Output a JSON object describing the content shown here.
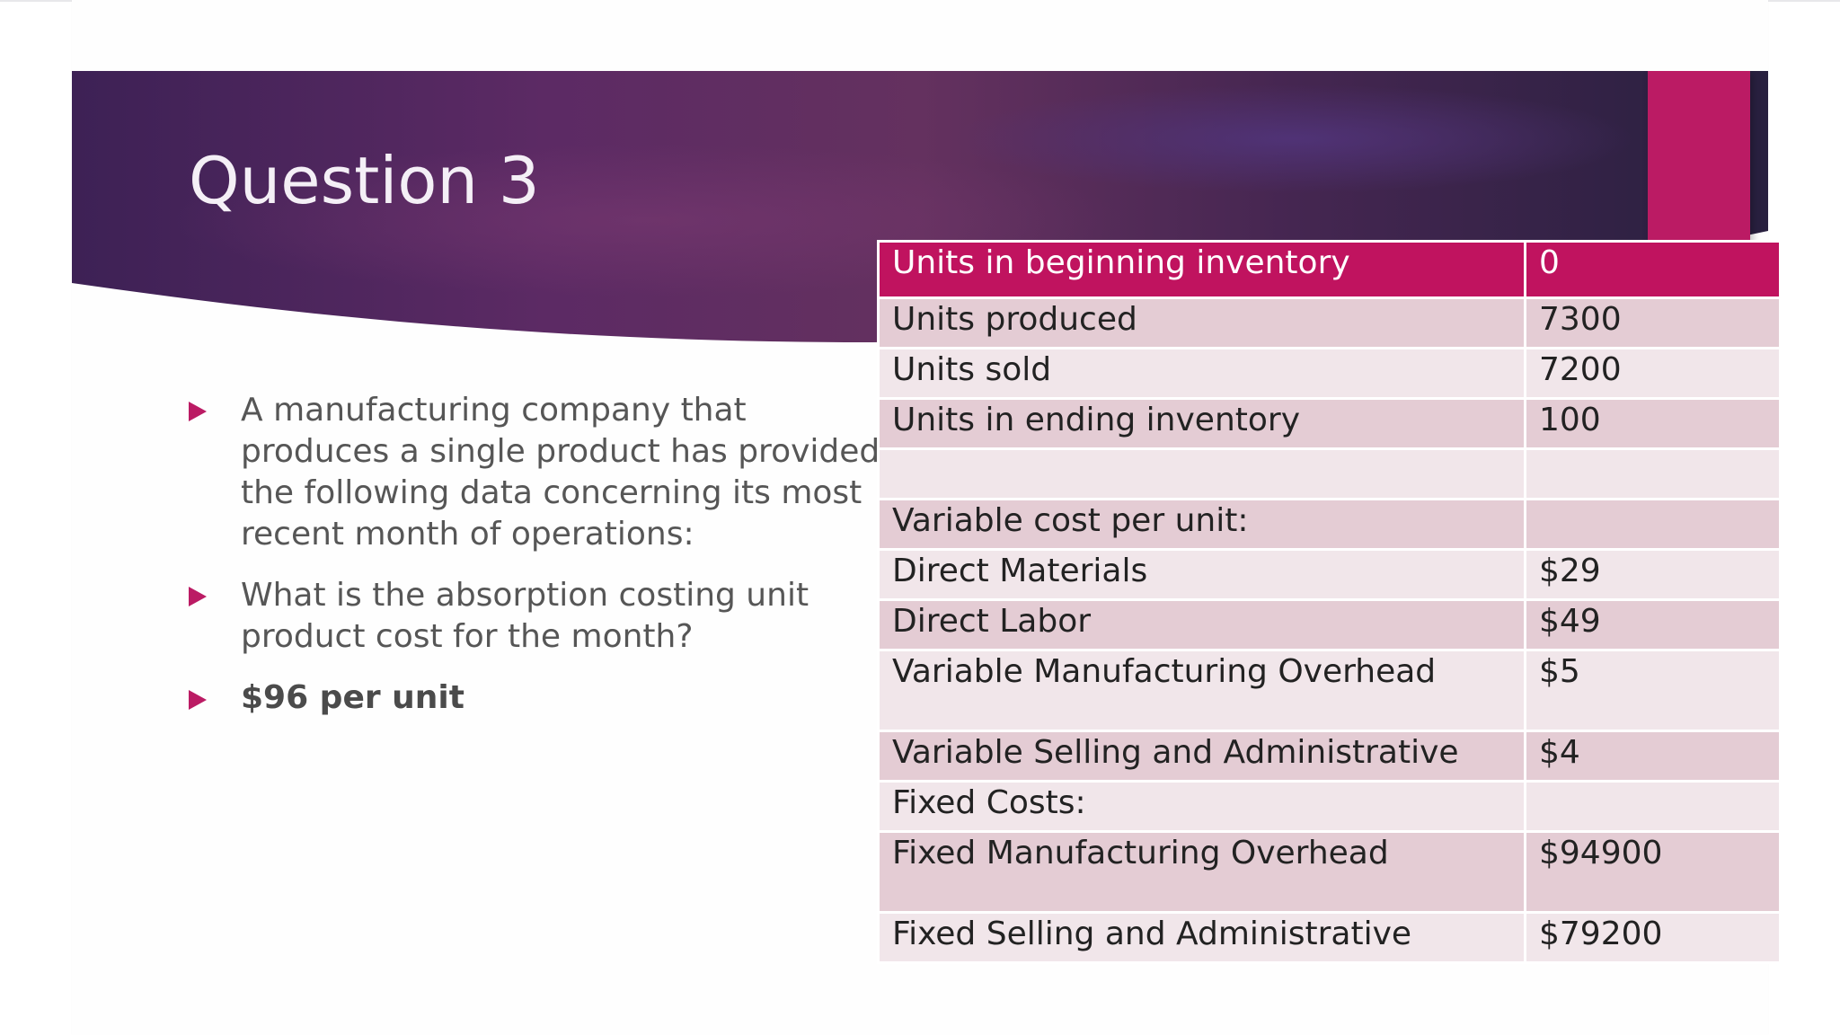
{
  "slide": {
    "title": "Question 3",
    "bullets": [
      "A manufacturing company that produces a single product has provided the following data concerning its most recent month of operations:",
      "What is the absorption costing unit product cost for the month?",
      "$96 per unit"
    ]
  },
  "table": {
    "rows": [
      {
        "label": "Units in beginning inventory",
        "value": "0"
      },
      {
        "label": "Units produced",
        "value": "7300"
      },
      {
        "label": "Units sold",
        "value": "7200"
      },
      {
        "label": "Units in ending inventory",
        "value": "100"
      },
      {
        "label": "",
        "value": ""
      },
      {
        "label": "Variable cost per unit:",
        "value": ""
      },
      {
        "label": "Direct Materials",
        "value": "$29"
      },
      {
        "label": "Direct Labor",
        "value": "$49"
      },
      {
        "label": "Variable Manufacturing Overhead",
        "value": "$5"
      },
      {
        "label": "Variable Selling and Administrative",
        "value": "$4"
      },
      {
        "label": "Fixed Costs:",
        "value": ""
      },
      {
        "label": "Fixed Manufacturing Overhead",
        "value": "$94900"
      },
      {
        "label": "Fixed Selling and Administrative",
        "value": "$79200"
      }
    ]
  },
  "colors": {
    "accent": "#bb1b64",
    "banner_dark": "#2f2146",
    "banner_mid": "#5b2a63",
    "row_dark": "#e4ccd4",
    "row_light": "#f1e6ea"
  }
}
